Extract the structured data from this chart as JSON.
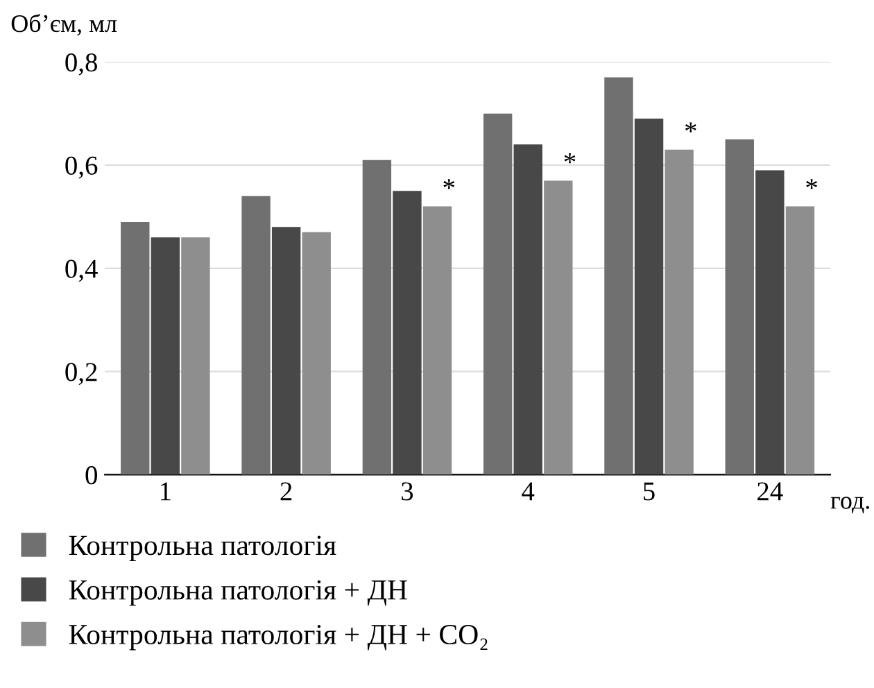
{
  "chart_data": {
    "type": "bar",
    "ylabel": "Об’єм, мл",
    "xlabel": "год.",
    "categories": [
      "1",
      "2",
      "3",
      "4",
      "5",
      "24"
    ],
    "series": [
      {
        "name": "Контрольна патологія",
        "color": "#707070",
        "values": [
          0.49,
          0.54,
          0.61,
          0.7,
          0.77,
          0.65
        ]
      },
      {
        "name": "Контрольна патологія + ДН",
        "color": "#484848",
        "values": [
          0.46,
          0.48,
          0.55,
          0.64,
          0.69,
          0.59
        ]
      },
      {
        "name": "Контрольна патологія + ДН + CO₂",
        "color": "#8e8e8e",
        "values": [
          0.46,
          0.47,
          0.52,
          0.57,
          0.63,
          0.52
        ]
      }
    ],
    "annotations": [
      "*",
      "*",
      "*",
      "*"
    ],
    "ylim": [
      0,
      0.8
    ],
    "yticks": [
      {
        "value": 0,
        "label": "0"
      },
      {
        "value": 0.2,
        "label": "0,2"
      },
      {
        "value": 0.4,
        "label": "0,4"
      },
      {
        "value": 0.6,
        "label": "0,6"
      },
      {
        "value": 0.8,
        "label": "0,8"
      }
    ],
    "grid": "y",
    "legend": "bottom"
  }
}
